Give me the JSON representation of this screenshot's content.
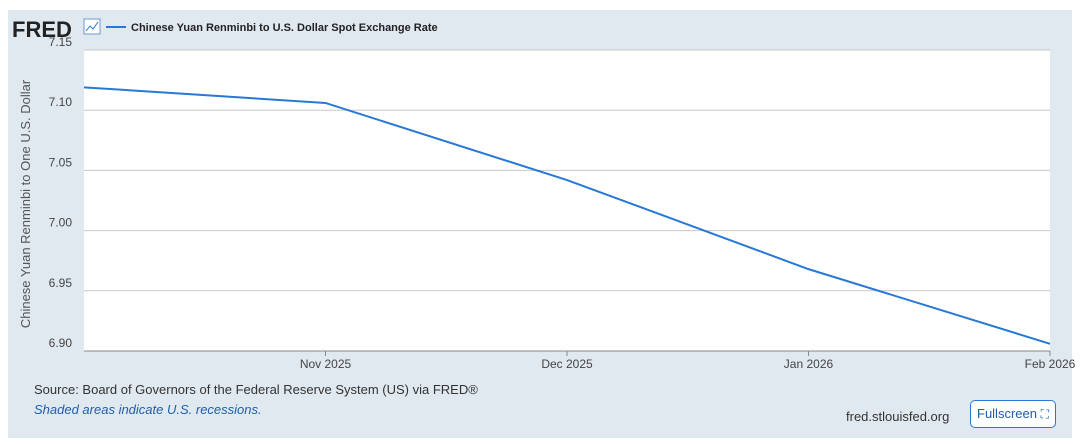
{
  "logo": "FRED",
  "chart_data": {
    "type": "line",
    "categories": [
      null,
      "Nov 2025",
      "Dec 2025",
      "Jan 2026",
      "Feb 2026"
    ],
    "series": [
      {
        "name": "Chinese Yuan Renminbi to U.S. Dollar Spot Exchange Rate",
        "color": "#2878d6",
        "values": [
          7.119,
          7.106,
          7.042,
          6.968,
          6.906
        ]
      }
    ],
    "y_label": "Chinese Yuan Renminbi to One U.S. Dollar",
    "ylim": [
      6.9,
      7.15
    ],
    "yticks": [
      {
        "value": 6.9,
        "label": "6.90"
      },
      6.95,
      {
        "value": 7.0,
        "label": "7.00"
      },
      7.05,
      {
        "value": 7.1,
        "label": "7.10"
      },
      7.15
    ],
    "grid": true
  },
  "source": "Source: Board of Governors of the Federal Reserve System (US) via FRED®",
  "note": "Shaded areas indicate U.S. recessions.",
  "site": "fred.stlouisfed.org",
  "button": "Fullscreen"
}
